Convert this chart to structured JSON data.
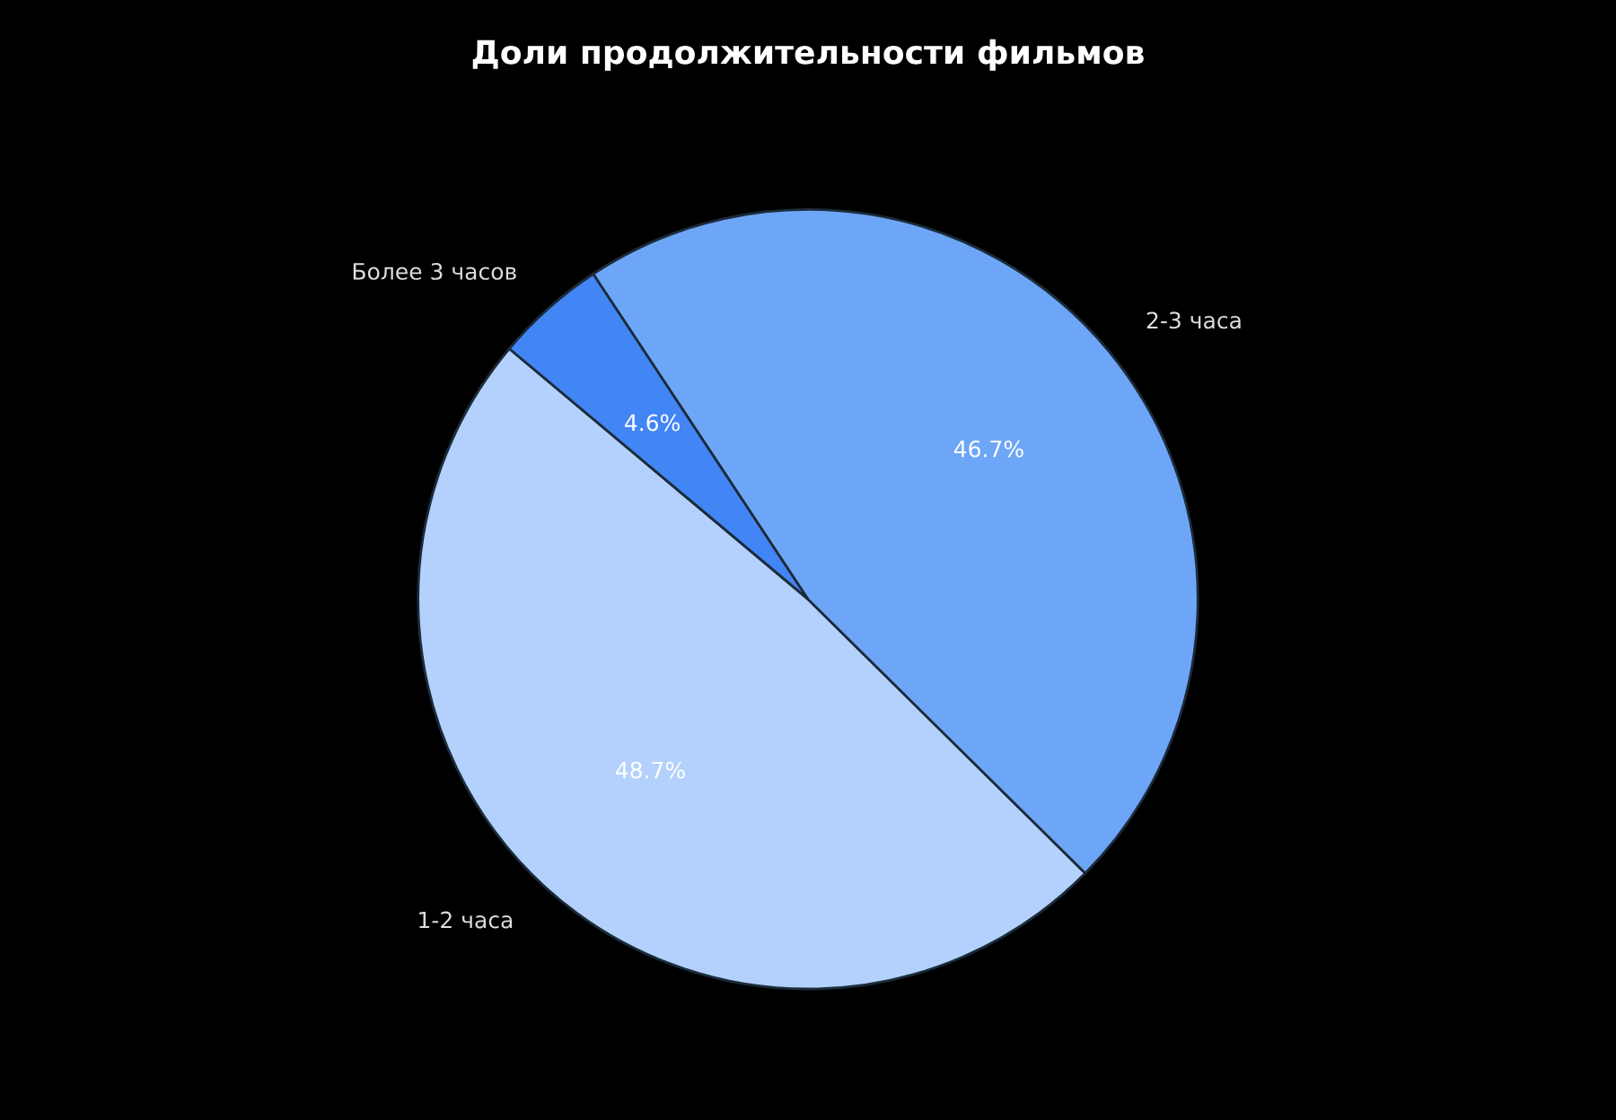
{
  "chart_data": {
    "type": "pie",
    "title": "Доли продолжительности фильмов",
    "categories": [
      "1-2 часа",
      "2-3 часа",
      "Более 3 часов"
    ],
    "values": [
      48.7,
      46.7,
      4.6
    ],
    "value_labels": [
      "48.7%",
      "46.7%",
      "4.6%"
    ],
    "colors": [
      "#b3d1fc",
      "#6ea6f7",
      "#4285f4"
    ]
  }
}
